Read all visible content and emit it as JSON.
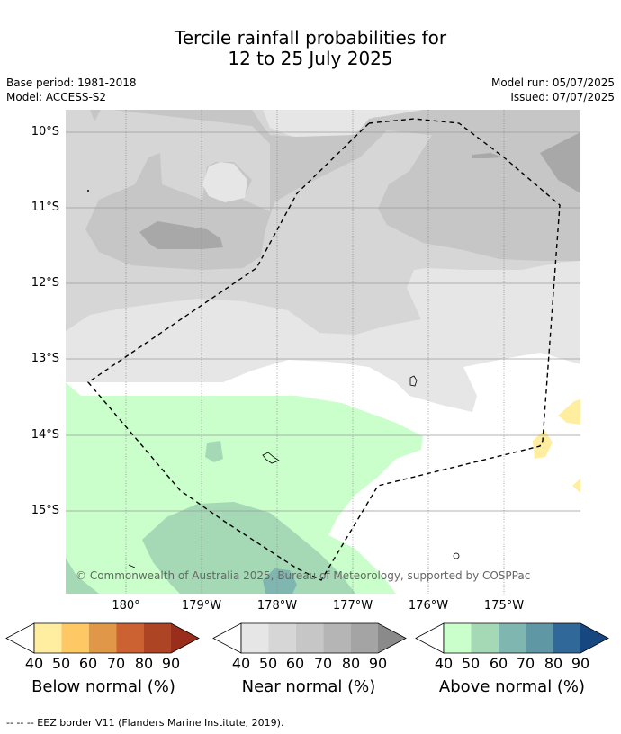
{
  "title": {
    "line1": "Tercile rainfall probabilities for",
    "line2": "12 to 25 July 2025"
  },
  "meta": {
    "base_period": "Base period: 1981-2018",
    "model": "Model: ACCESS-S2",
    "model_run": "Model run: 05/07/2025",
    "issued": "Issued: 07/07/2025"
  },
  "map": {
    "lat_labels": [
      "10°S",
      "11°S",
      "12°S",
      "13°S",
      "14°S",
      "15°S"
    ],
    "lon_labels": [
      "180°",
      "179°W",
      "178°W",
      "177°W",
      "176°W",
      "175°W"
    ],
    "copyright": "© Commonwealth of Australia 2025, Bureau of Meteorology, supported by COSPPac"
  },
  "legends": [
    {
      "name": "Below normal (%)",
      "ticks": [
        "40",
        "50",
        "60",
        "70",
        "80",
        "90"
      ],
      "colors": [
        "#ffeea0",
        "#fec965",
        "#e19748",
        "#cc6132",
        "#ad4423",
        "#982e1b"
      ]
    },
    {
      "name": "Near normal (%)",
      "ticks": [
        "40",
        "50",
        "60",
        "70",
        "80",
        "90"
      ],
      "colors": [
        "#e6e6e6",
        "#d6d6d6",
        "#c6c6c6",
        "#b5b5b5",
        "#a4a4a4",
        "#8a8a8a"
      ]
    },
    {
      "name": "Above normal (%)",
      "ticks": [
        "40",
        "50",
        "60",
        "70",
        "80",
        "90"
      ],
      "colors": [
        "#caffcb",
        "#a5d9b6",
        "#7fb7b0",
        "#5f98a4",
        "#31689a",
        "#174780"
      ]
    }
  ],
  "footer": "--  --  -- EEZ border V11 (Flanders Marine Institute, 2019)."
}
